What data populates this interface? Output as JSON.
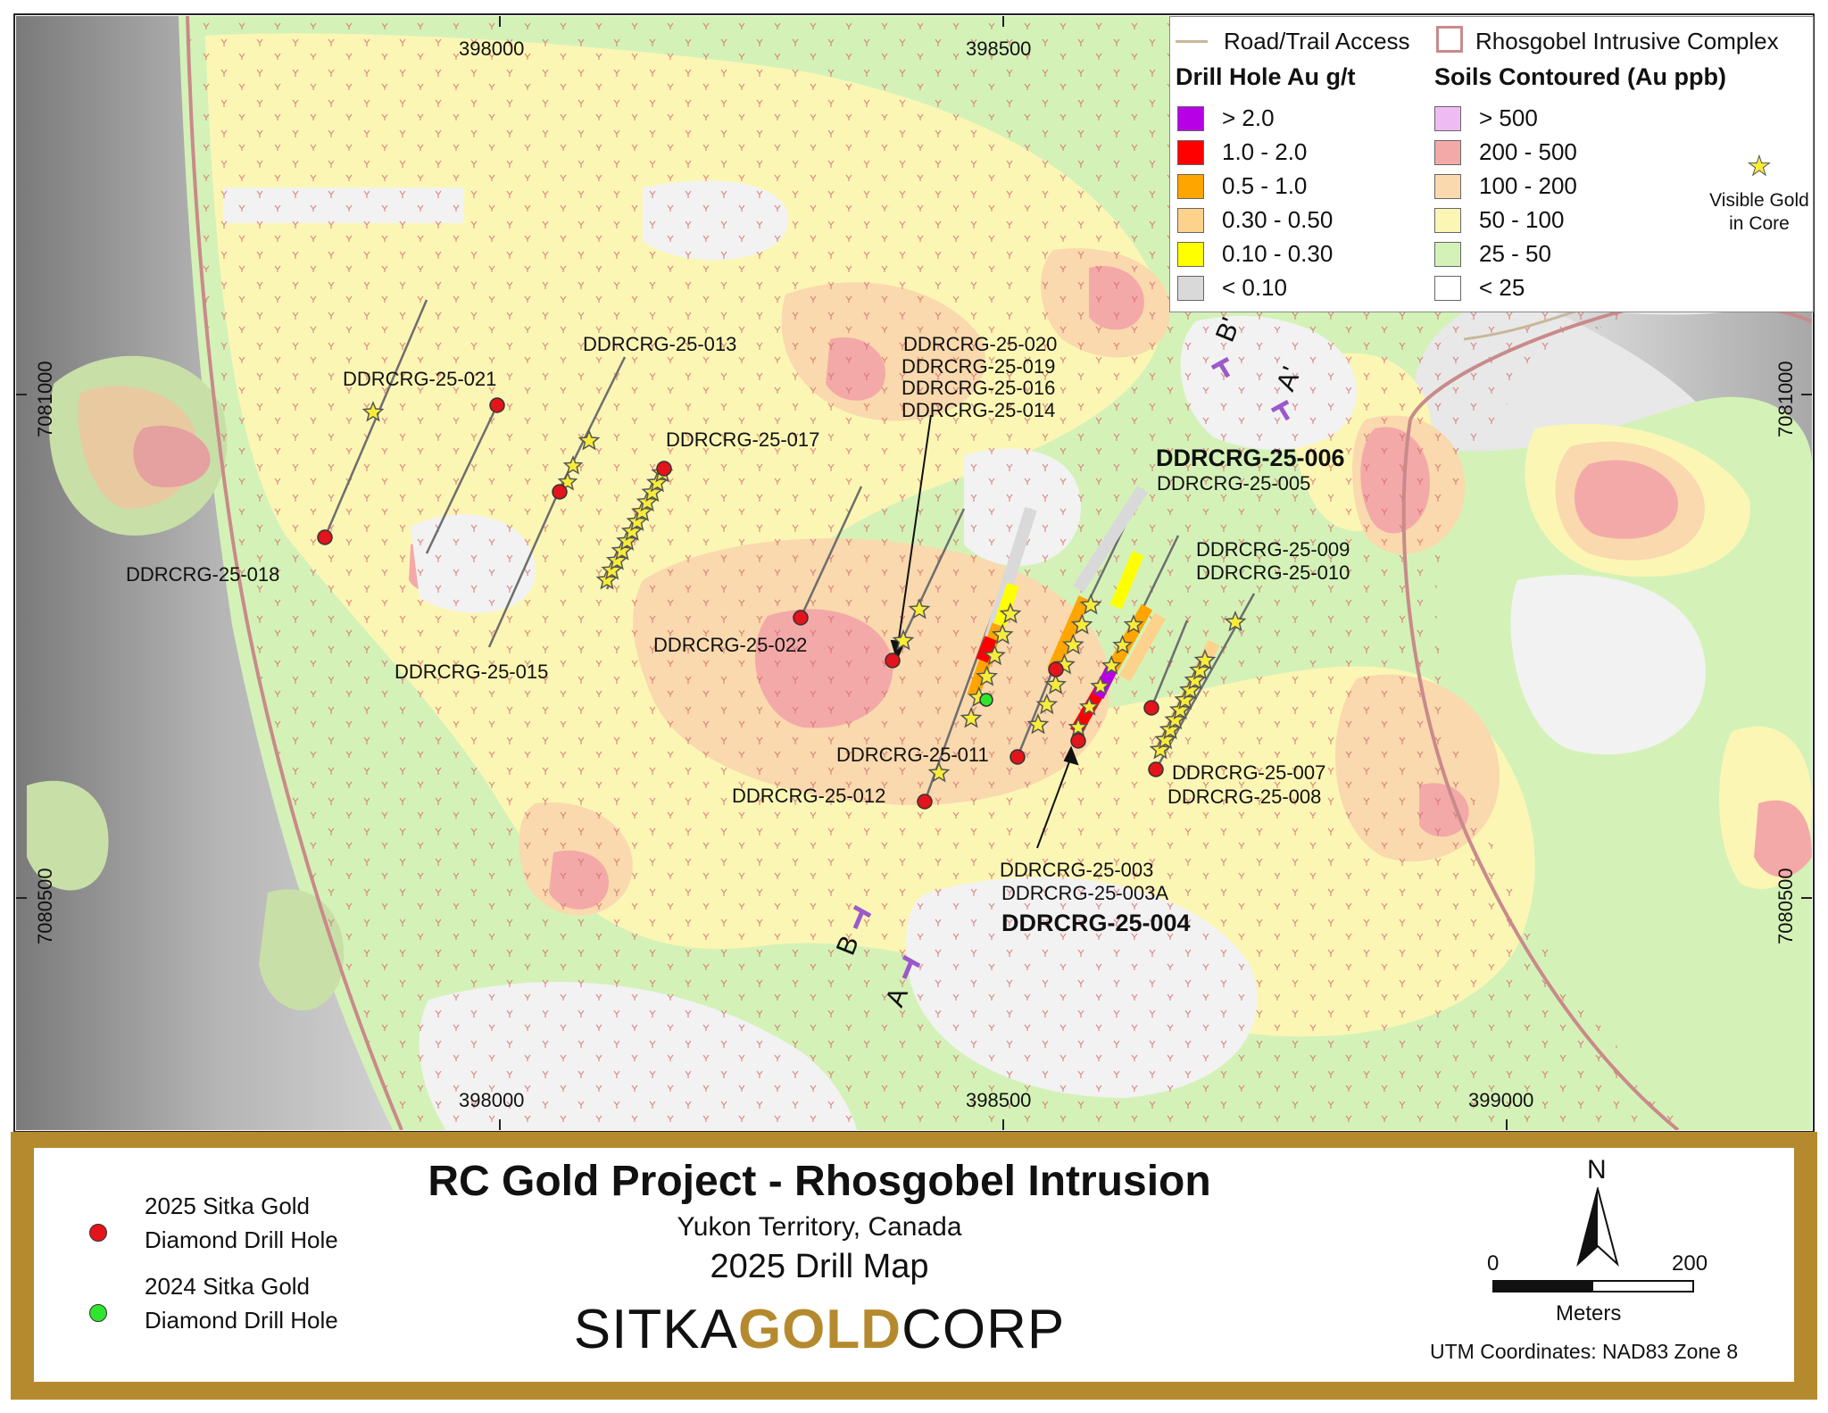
{
  "legend": {
    "road_label": "Road/Trail Access",
    "intrusive_label": "Rhosgobel Intrusive Complex",
    "drill_heading": "Drill Hole Au g/t",
    "soils_heading": "Soils Contoured (Au ppb)",
    "drill_classes": [
      {
        "label": "> 2.0",
        "color": "#b800e6"
      },
      {
        "label": "1.0 - 2.0",
        "color": "#ff0000"
      },
      {
        "label": "0.5 - 1.0",
        "color": "#ffa500"
      },
      {
        "label": "0.30 - 0.50",
        "color": "#fcd28c"
      },
      {
        "label": "0.10 - 0.30",
        "color": "#ffff00"
      },
      {
        "label": "< 0.10",
        "color": "#d9d9d9"
      }
    ],
    "soil_classes": [
      {
        "label": "> 500",
        "color": "#eebcf3"
      },
      {
        "label": "200 - 500",
        "color": "#f4a9a9"
      },
      {
        "label": "100 - 200",
        "color": "#f9d9ad"
      },
      {
        "label": "50 - 100",
        "color": "#fcf6b5"
      },
      {
        "label": "25 - 50",
        "color": "#d4f2b8"
      },
      {
        "label": "< 25",
        "color": "#ffffff"
      }
    ],
    "visible_gold_label_1": "Visible Gold",
    "visible_gold_label_2": "in Core"
  },
  "coords": {
    "x_top": [
      "398000",
      "398500"
    ],
    "x_bottom": [
      "398000",
      "398500",
      "399000"
    ],
    "y_left": [
      "7081000",
      "7080500"
    ],
    "y_right": [
      "7081000",
      "7080500"
    ]
  },
  "holes": {
    "h021": "DDRCRG-25-021",
    "h013": "DDRCRG-25-013",
    "h017": "DDRCRG-25-017",
    "h018": "DDRCRG-25-018",
    "h015": "DDRCRG-25-015",
    "h022": "DDRCRG-25-022",
    "h020": "DDRCRG-25-020",
    "h019": "DDRCRG-25-019",
    "h016": "DDRCRG-25-016",
    "h014": "DDRCRG-25-014",
    "h006": "DDRCRG-25-006",
    "h005": "DDRCRG-25-005",
    "h009": "DDRCRG-25-009",
    "h010": "DDRCRG-25-010",
    "h011": "DDRCRG-25-011",
    "h012": "DDRCRG-25-012",
    "h007": "DDRCRG-25-007",
    "h008": "DDRCRG-25-008",
    "h003": "DDRCRG-25-003",
    "h003a": "DDRCRG-25-003A",
    "h004": "DDRCRG-25-004"
  },
  "sections": {
    "a": "A",
    "a_prime": "A'",
    "b": "B",
    "b_prime": "B'"
  },
  "title_block": {
    "legend_2025_line1": "2025 Sitka Gold",
    "legend_2025_line2": "Diamond Drill Hole",
    "legend_2024_line1": "2024 Sitka Gold",
    "legend_2024_line2": "Diamond Drill Hole",
    "title": "RC Gold Project - Rhosgobel Intrusion",
    "subtitle": "Yukon Territory, Canada",
    "map_name": "2025 Drill Map",
    "logo_left": "SITKA",
    "logo_mid": "GOLD",
    "logo_right": "CORP",
    "north": "N",
    "scale_start": "0",
    "scale_end": "200",
    "scale_unit": "Meters",
    "utm": "UTM Coordinates: NAD83 Zone 8"
  },
  "colors": {
    "frame_gold": "#b58a2e",
    "hole_2025": "#e3141c",
    "hole_2024": "#2ee62e",
    "section_line": "#9b59c9"
  }
}
